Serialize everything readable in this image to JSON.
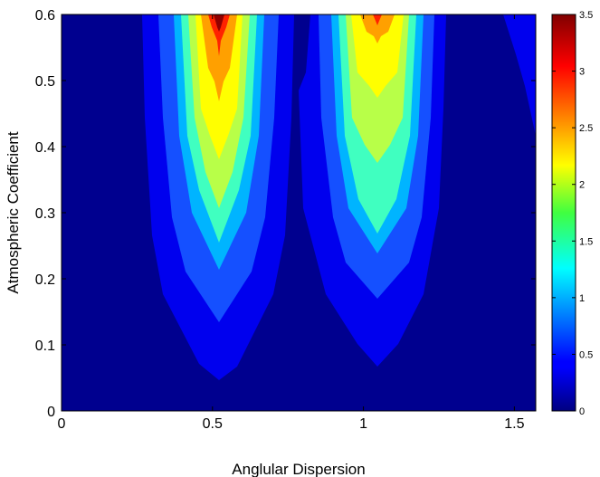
{
  "chart_data": {
    "type": "contourf",
    "xlabel": "Anglular Dispersion",
    "ylabel": "Atmospheric Coefficient",
    "xlim": [
      0,
      1.5708
    ],
    "ylim": [
      0,
      0.6
    ],
    "x_ticks": [
      "0",
      "0.5",
      "1",
      "1.5"
    ],
    "x_tick_values": [
      0,
      0.5,
      1,
      1.5
    ],
    "y_ticks": [
      "0",
      "0.1",
      "0.2",
      "0.3",
      "0.4",
      "0.5",
      "0.6"
    ],
    "y_tick_values": [
      0,
      0.1,
      0.2,
      0.3,
      0.4,
      0.5,
      0.6
    ],
    "colorbar": {
      "range": [
        0,
        3.5
      ],
      "colormap": "jet",
      "ticks": [
        "0",
        "0.5",
        "1",
        "1.5",
        "2",
        "2.5",
        "3",
        "3.5"
      ],
      "tick_values": [
        0,
        0.5,
        1,
        1.5,
        2,
        2.5,
        3,
        3.5
      ]
    },
    "contour_levels": [
      0.5,
      1,
      1.5,
      2,
      2.5,
      3,
      3.5
    ],
    "level_colors": [
      "#0000cd",
      "#1a50ff",
      "#00b0ff",
      "#40ffbf",
      "#c0ff40",
      "#ffff00",
      "#ffa000",
      "#ff2000",
      "#8b0000"
    ],
    "peaks": [
      {
        "x": 0.5236,
        "y_top": 0.6,
        "peak_value": 3.5
      },
      {
        "x": 1.0472,
        "y_top": 0.6,
        "peak_value": 3.1
      },
      {
        "x": 1.5708,
        "y_top": 0.6,
        "peak_value": 0.6
      }
    ],
    "background_value": 0.2
  }
}
